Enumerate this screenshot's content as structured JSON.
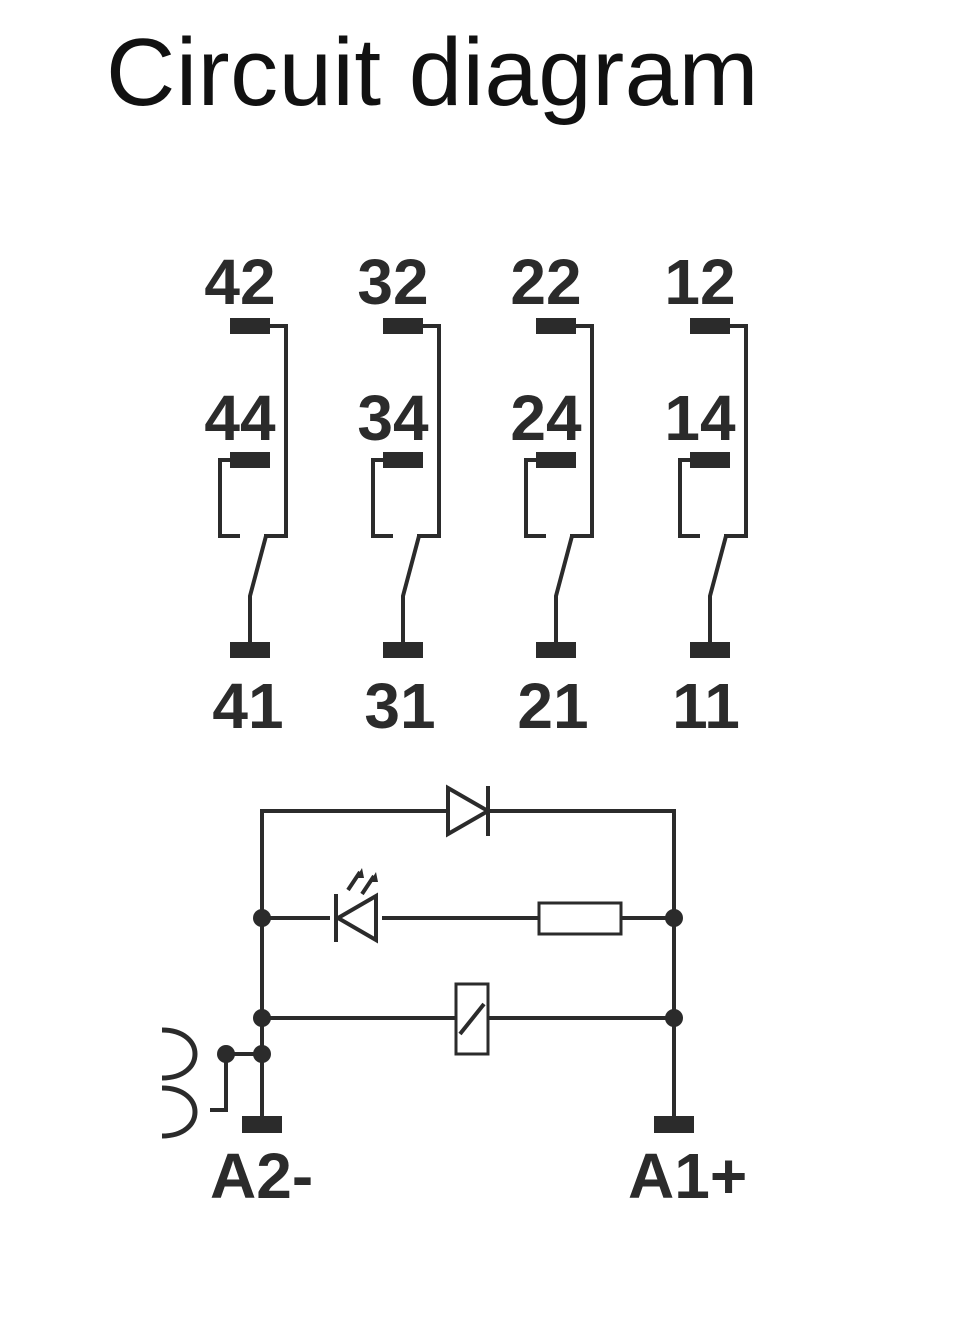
{
  "title": "Circuit diagram",
  "contacts": [
    {
      "nc": "42",
      "no": "44",
      "common": "41"
    },
    {
      "nc": "32",
      "no": "34",
      "common": "31"
    },
    {
      "nc": "22",
      "no": "24",
      "common": "21"
    },
    {
      "nc": "12",
      "no": "14",
      "common": "11"
    }
  ],
  "coil_terminals": {
    "negative": "A2-",
    "positive": "A1+"
  },
  "components": [
    "free-wheeling-diode",
    "led",
    "resistor",
    "relay-coil",
    "bridge-connector"
  ],
  "colors": {
    "line": "#2b2b2b",
    "background": "#ffffff",
    "title": "#111111"
  }
}
